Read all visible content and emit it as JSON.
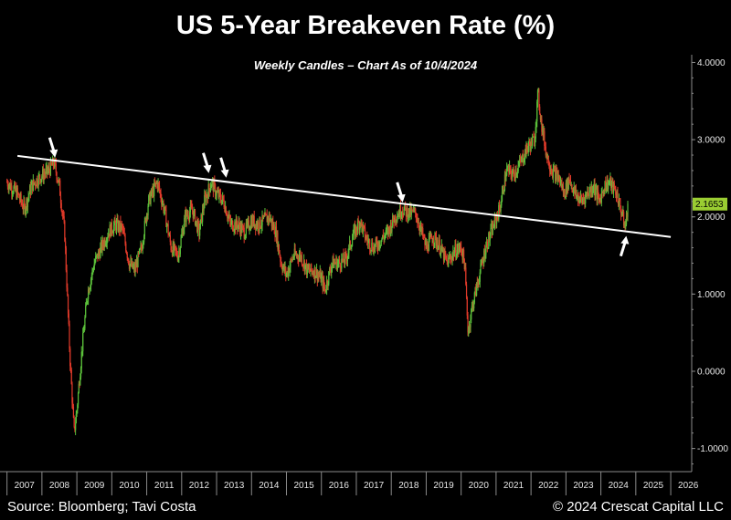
{
  "header": {
    "title": "US 5-Year Breakeven Rate (%)",
    "subtitle": "Weekly Candles – Chart As of 10/4/2024"
  },
  "footer": {
    "source": "Source: Bloomberg; Tavi Costa",
    "copyright": "© 2024 Crescat Capital LLC"
  },
  "colors": {
    "background": "#000000",
    "up_candle": "#5bbf3a",
    "down_candle": "#e03a2a",
    "trendline": "#ffffff",
    "last_value_badge": "#9acd32",
    "axis": "#8a8a8a"
  },
  "chart_data": {
    "type": "candlestick",
    "title": "US 5-Year Breakeven Rate (%)",
    "subtitle": "Weekly Candles – Chart As of 10/4/2024",
    "xlabel": "",
    "ylabel": "",
    "x_ticks": [
      "2007",
      "2008",
      "2009",
      "2010",
      "2011",
      "2012",
      "2013",
      "2014",
      "2015",
      "2016",
      "2017",
      "2018",
      "2019",
      "2020",
      "2021",
      "2022",
      "2023",
      "2024",
      "2025",
      "2026"
    ],
    "y_ticks": [
      "4.0000",
      "3.0000",
      "2.0000",
      "1.0000",
      "0.0000",
      "-1.0000"
    ],
    "ylim": [
      -1.3,
      4.1
    ],
    "xlim": [
      2006.8,
      2026.6
    ],
    "last_value": "2.1653",
    "series": [
      {
        "points": [
          [
            2007.0,
            2.45
          ],
          [
            2007.3,
            2.3
          ],
          [
            2007.5,
            2.1
          ],
          [
            2007.7,
            2.4
          ],
          [
            2007.9,
            2.5
          ],
          [
            2008.2,
            2.6
          ],
          [
            2008.35,
            2.7
          ],
          [
            2008.5,
            2.4
          ],
          [
            2008.65,
            1.8
          ],
          [
            2008.8,
            0.2
          ],
          [
            2008.92,
            -0.8
          ],
          [
            2009.0,
            -0.5
          ],
          [
            2009.15,
            0.3
          ],
          [
            2009.3,
            1.0
          ],
          [
            2009.5,
            1.4
          ],
          [
            2009.7,
            1.6
          ],
          [
            2009.9,
            1.8
          ],
          [
            2010.1,
            1.9
          ],
          [
            2010.3,
            1.85
          ],
          [
            2010.5,
            1.4
          ],
          [
            2010.65,
            1.3
          ],
          [
            2010.85,
            1.6
          ],
          [
            2011.05,
            2.2
          ],
          [
            2011.3,
            2.45
          ],
          [
            2011.5,
            2.1
          ],
          [
            2011.7,
            1.6
          ],
          [
            2011.9,
            1.5
          ],
          [
            2012.1,
            2.0
          ],
          [
            2012.3,
            2.1
          ],
          [
            2012.5,
            1.8
          ],
          [
            2012.65,
            2.2
          ],
          [
            2012.85,
            2.45
          ],
          [
            2013.0,
            2.3
          ],
          [
            2013.2,
            2.2
          ],
          [
            2013.4,
            1.9
          ],
          [
            2013.6,
            1.9
          ],
          [
            2013.8,
            1.8
          ],
          [
            2014.0,
            1.95
          ],
          [
            2014.2,
            1.9
          ],
          [
            2014.5,
            2.0
          ],
          [
            2014.7,
            1.8
          ],
          [
            2014.85,
            1.4
          ],
          [
            2015.0,
            1.25
          ],
          [
            2015.2,
            1.5
          ],
          [
            2015.4,
            1.5
          ],
          [
            2015.6,
            1.3
          ],
          [
            2015.8,
            1.3
          ],
          [
            2016.0,
            1.2
          ],
          [
            2016.1,
            1.05
          ],
          [
            2016.3,
            1.4
          ],
          [
            2016.5,
            1.4
          ],
          [
            2016.7,
            1.45
          ],
          [
            2016.9,
            1.75
          ],
          [
            2017.1,
            1.95
          ],
          [
            2017.3,
            1.7
          ],
          [
            2017.5,
            1.6
          ],
          [
            2017.7,
            1.7
          ],
          [
            2017.9,
            1.8
          ],
          [
            2018.1,
            2.0
          ],
          [
            2018.3,
            2.1
          ],
          [
            2018.5,
            2.05
          ],
          [
            2018.7,
            2.05
          ],
          [
            2018.9,
            1.75
          ],
          [
            2019.0,
            1.6
          ],
          [
            2019.2,
            1.75
          ],
          [
            2019.4,
            1.6
          ],
          [
            2019.6,
            1.4
          ],
          [
            2019.8,
            1.55
          ],
          [
            2020.0,
            1.6
          ],
          [
            2020.1,
            1.4
          ],
          [
            2020.2,
            0.5
          ],
          [
            2020.3,
            0.8
          ],
          [
            2020.5,
            1.2
          ],
          [
            2020.7,
            1.6
          ],
          [
            2020.9,
            1.85
          ],
          [
            2021.1,
            2.1
          ],
          [
            2021.3,
            2.6
          ],
          [
            2021.5,
            2.55
          ],
          [
            2021.7,
            2.7
          ],
          [
            2021.9,
            2.9
          ],
          [
            2022.1,
            3.0
          ],
          [
            2022.2,
            3.6
          ],
          [
            2022.3,
            3.2
          ],
          [
            2022.45,
            2.8
          ],
          [
            2022.6,
            2.6
          ],
          [
            2022.8,
            2.5
          ],
          [
            2022.95,
            2.3
          ],
          [
            2023.1,
            2.5
          ],
          [
            2023.25,
            2.3
          ],
          [
            2023.45,
            2.2
          ],
          [
            2023.6,
            2.3
          ],
          [
            2023.8,
            2.4
          ],
          [
            2023.95,
            2.2
          ],
          [
            2024.1,
            2.4
          ],
          [
            2024.25,
            2.45
          ],
          [
            2024.45,
            2.3
          ],
          [
            2024.6,
            2.05
          ],
          [
            2024.7,
            1.85
          ],
          [
            2024.77,
            2.17
          ]
        ]
      }
    ],
    "trendline": {
      "from": [
        2007.3,
        2.79
      ],
      "to": [
        2026.0,
        1.74
      ]
    },
    "annotations": [
      {
        "kind": "arrow-down",
        "at": [
          2008.35,
          2.72
        ]
      },
      {
        "kind": "arrow-down",
        "at": [
          2012.75,
          2.52
        ]
      },
      {
        "kind": "arrow-down",
        "at": [
          2013.25,
          2.46
        ]
      },
      {
        "kind": "arrow-down",
        "at": [
          2018.3,
          2.14
        ]
      },
      {
        "kind": "arrow-up",
        "at": [
          2024.7,
          1.8
        ]
      }
    ]
  }
}
